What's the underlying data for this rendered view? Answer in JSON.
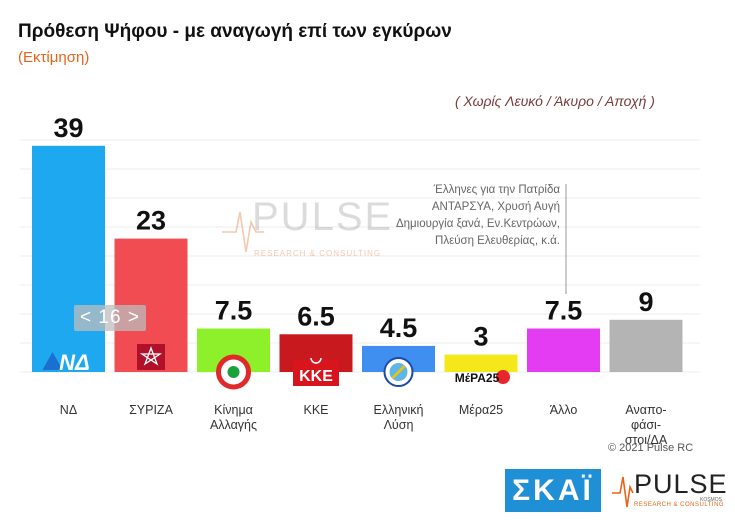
{
  "chart_data": {
    "type": "bar",
    "title": "Πρόθεση Ψήφου - με αναγωγή επί των εγκύρων",
    "subtitle": "(Εκτίμηση)",
    "note": "( Χωρίς Λευκό / Άκυρο / Αποχή )",
    "categories": [
      [
        "ΝΔ"
      ],
      [
        "ΣΥΡΙΖΑ"
      ],
      [
        "Κίνημα",
        "Αλλαγής"
      ],
      [
        "ΚΚΕ"
      ],
      [
        "Ελληνική",
        "Λύση"
      ],
      [
        "Μέρα25"
      ],
      [
        "Άλλο"
      ],
      [
        "Αναπο-",
        "φάσι-",
        "στοι/ΔΑ"
      ]
    ],
    "values": [
      39,
      23,
      7.5,
      6.5,
      4.5,
      3,
      7.5,
      9
    ],
    "value_labels": [
      "39",
      "23",
      "7.5",
      "6.5",
      "4.5",
      "3",
      "7.5",
      "9"
    ],
    "colors": [
      "#1ea8f0",
      "#f04c52",
      "#8ef02a",
      "#c8191f",
      "#3f8ff0",
      "#f4e81a",
      "#e43cf2",
      "#b4b4b4"
    ],
    "ylim": [
      0,
      40
    ],
    "grid": true,
    "legend": "none",
    "annotation": {
      "lines": [
        "Έλληνες για την Πατρίδα",
        "ΑΝΤΑΡΣΥΑ, Χρυσή Αυγή",
        "Δημιουργία ξανά, Εν.Κεντρώων,",
        "Πλεύση  Ελευθερίας, κ.ά."
      ],
      "target_index": 6
    },
    "logos": [
      {
        "icon": "nd-logo-icon",
        "text": "ΝΔ"
      },
      {
        "icon": "syriza-logo-icon",
        "text": ""
      },
      {
        "icon": "kinal-logo-icon",
        "text": ""
      },
      {
        "icon": "kke-logo-icon",
        "text": "ΚΚΕ"
      },
      {
        "icon": "elliniki-lysi-logo-icon",
        "text": ""
      },
      {
        "icon": "mera25-logo-icon",
        "text": "ΜέΡΑ25"
      },
      null,
      null
    ]
  },
  "page_tag": "< 16 >",
  "copyright": "© 2021 Pulse RC",
  "branding": {
    "skai": "ΣΚΑΪ",
    "pulse_word": "PULSE",
    "pulse_sub": "RESEARCH & CONSULTING",
    "pulse_kosmos": "KOSMOS",
    "watermark_word": "PULSE",
    "watermark_sub": "RESEARCH & CONSULTING",
    "brand_orange": "#e8641a",
    "skai_blue": "#1f8fd6"
  }
}
